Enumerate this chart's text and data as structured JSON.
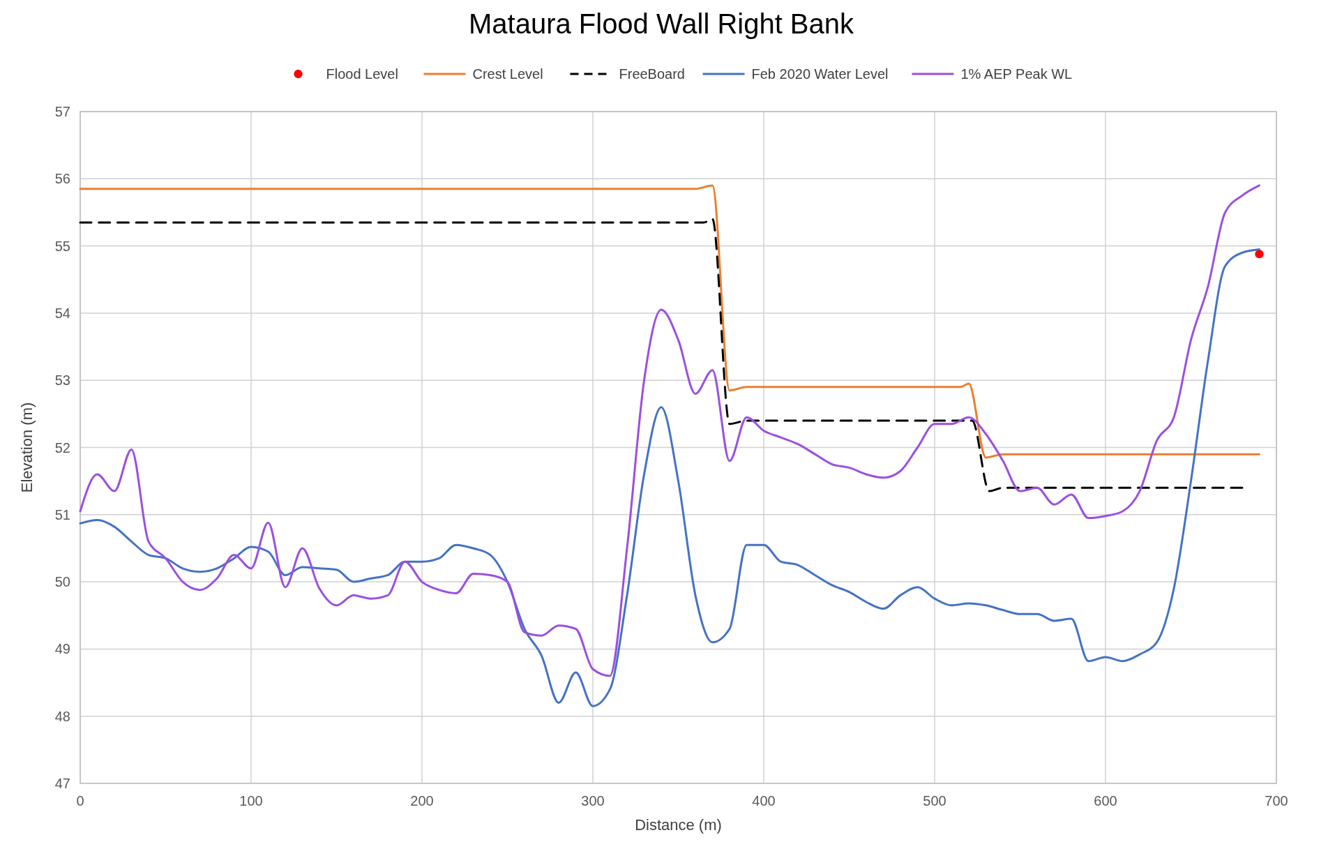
{
  "chart_data": {
    "type": "line",
    "title": "Mataura Flood Wall Right Bank",
    "xlabel": "Distance (m)",
    "ylabel": "Elevation (m)",
    "xlim": [
      0,
      700
    ],
    "xticks": [
      0,
      100,
      200,
      300,
      400,
      500,
      600,
      700
    ],
    "ylim": [
      47,
      57
    ],
    "yticks": [
      47,
      48,
      49,
      50,
      51,
      52,
      53,
      54,
      55,
      56,
      57
    ],
    "grid": true,
    "legend": "top",
    "series": [
      {
        "name": "Flood Level",
        "type": "scatter",
        "marker": "circle",
        "color": "#ff0000",
        "x": [
          690
        ],
        "values": [
          54.88
        ]
      },
      {
        "name": "Crest Level",
        "line_style": "solid",
        "color": "#ed7d31",
        "x": [
          0,
          360,
          370,
          380,
          390,
          515,
          520,
          530,
          540,
          690
        ],
        "values": [
          55.85,
          55.85,
          55.9,
          52.85,
          52.9,
          52.9,
          52.95,
          51.85,
          51.9,
          51.9
        ]
      },
      {
        "name": "FreeBoard",
        "line_style": "dashed",
        "color": "#000000",
        "x": [
          0,
          365,
          370,
          380,
          390,
          518,
          522,
          532,
          540,
          680
        ],
        "values": [
          55.35,
          55.35,
          55.4,
          52.35,
          52.4,
          52.4,
          52.4,
          51.35,
          51.4,
          51.4
        ]
      },
      {
        "name": "Feb 2020 Water Level",
        "line_style": "solid",
        "color": "#4472c4",
        "x": [
          0,
          10,
          20,
          30,
          40,
          50,
          60,
          70,
          80,
          90,
          100,
          110,
          120,
          130,
          140,
          150,
          160,
          170,
          180,
          190,
          200,
          210,
          220,
          230,
          240,
          250,
          260,
          270,
          280,
          290,
          300,
          310,
          320,
          330,
          340,
          350,
          360,
          370,
          380,
          390,
          400,
          410,
          420,
          430,
          440,
          450,
          460,
          470,
          480,
          490,
          500,
          510,
          520,
          530,
          540,
          550,
          560,
          570,
          580,
          590,
          600,
          610,
          620,
          630,
          640,
          650,
          660,
          670,
          680,
          690
        ],
        "values": [
          50.87,
          50.92,
          50.82,
          50.6,
          50.4,
          50.35,
          50.2,
          50.15,
          50.2,
          50.35,
          50.52,
          50.45,
          50.1,
          50.22,
          50.2,
          50.18,
          50.0,
          50.05,
          50.1,
          50.3,
          50.3,
          50.35,
          50.55,
          50.5,
          50.4,
          50.0,
          49.3,
          48.9,
          48.2,
          48.65,
          48.15,
          48.4,
          49.8,
          51.6,
          52.6,
          51.5,
          49.8,
          49.1,
          49.3,
          50.55,
          50.55,
          50.3,
          50.25,
          50.1,
          49.95,
          49.85,
          49.7,
          49.6,
          49.8,
          49.92,
          49.75,
          49.65,
          49.68,
          49.65,
          49.58,
          49.52,
          49.52,
          49.42,
          49.45,
          48.82,
          48.88,
          48.82,
          48.92,
          49.1,
          49.9,
          51.5,
          53.3,
          54.7,
          54.9,
          54.95
        ]
      },
      {
        "name": "1% AEP Peak WL",
        "line_style": "solid",
        "color": "#9b4fe0",
        "x": [
          0,
          10,
          20,
          30,
          40,
          50,
          60,
          70,
          80,
          90,
          100,
          110,
          120,
          130,
          140,
          150,
          160,
          170,
          180,
          190,
          200,
          210,
          220,
          230,
          240,
          250,
          260,
          270,
          280,
          290,
          300,
          310,
          320,
          330,
          340,
          350,
          360,
          370,
          380,
          390,
          400,
          410,
          420,
          430,
          440,
          450,
          460,
          470,
          480,
          490,
          500,
          510,
          520,
          530,
          540,
          550,
          560,
          570,
          580,
          590,
          600,
          610,
          620,
          630,
          640,
          650,
          660,
          670,
          680,
          690
        ],
        "values": [
          51.05,
          51.6,
          51.35,
          51.97,
          50.6,
          50.35,
          50.0,
          49.88,
          50.05,
          50.4,
          50.2,
          50.88,
          49.92,
          50.5,
          49.9,
          49.65,
          49.8,
          49.75,
          49.8,
          50.3,
          50.0,
          49.88,
          49.83,
          50.12,
          50.1,
          50.0,
          49.25,
          49.2,
          49.35,
          49.3,
          48.7,
          48.6,
          50.5,
          53.0,
          54.05,
          53.6,
          52.8,
          53.15,
          51.8,
          52.45,
          52.25,
          52.15,
          52.05,
          51.9,
          51.75,
          51.7,
          51.6,
          51.55,
          51.65,
          52.0,
          52.35,
          52.35,
          52.45,
          52.2,
          51.8,
          51.35,
          51.4,
          51.15,
          51.3,
          50.95,
          50.98,
          51.05,
          51.35,
          52.1,
          52.45,
          53.6,
          54.4,
          55.5,
          55.75,
          55.9
        ]
      }
    ]
  }
}
